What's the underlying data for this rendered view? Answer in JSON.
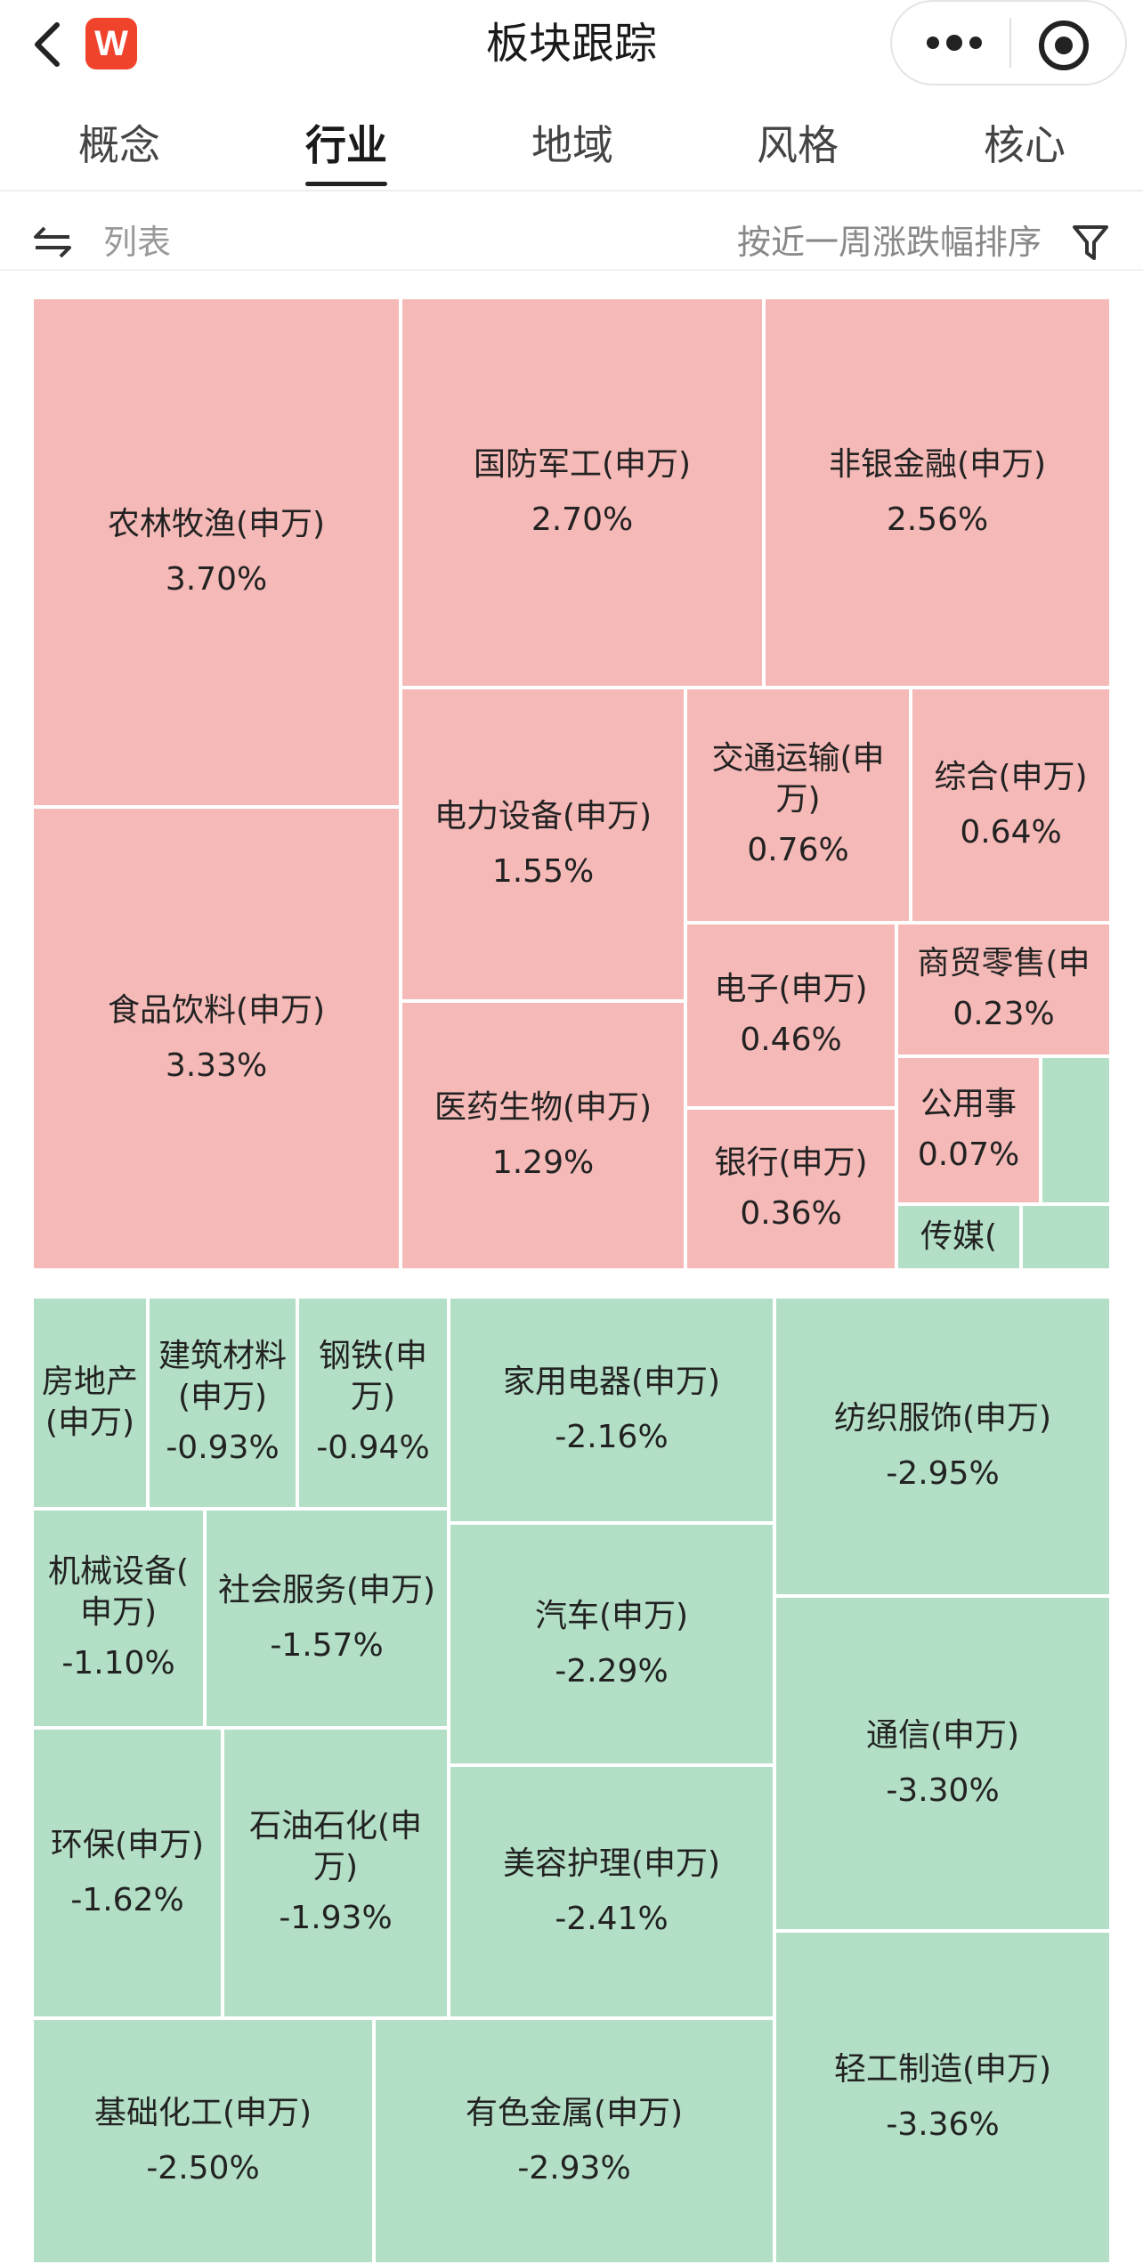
{
  "header": {
    "title": "板块跟踪",
    "logo_letter": "W",
    "brand_color": "#f0432b"
  },
  "tabs": [
    {
      "label": "概念",
      "active": false
    },
    {
      "label": "行业",
      "active": true
    },
    {
      "label": "地域",
      "active": false
    },
    {
      "label": "风格",
      "active": false
    },
    {
      "label": "核心",
      "active": false
    }
  ],
  "toolbar": {
    "view_label": "列表",
    "sort_label": "按近一周涨跌幅排序"
  },
  "colors": {
    "rise": "#f5b9b7",
    "fall": "#b3dfc6"
  },
  "sectors": [
    {
      "name": "农林牧渔(申万)",
      "change": "3.70%"
    },
    {
      "name": "国防军工(申万)",
      "change": "2.70%"
    },
    {
      "name": "非银金融(申万)",
      "change": "2.56%"
    },
    {
      "name": "食品饮料(申万)",
      "change": "3.33%"
    },
    {
      "name": "电力设备(申万)",
      "change": "1.55%"
    },
    {
      "name_line1": "交通运输(申",
      "name_line2": "万)",
      "change": "0.76%"
    },
    {
      "name": "综合(申万)",
      "change": "0.64%"
    },
    {
      "name": "医药生物(申万)",
      "change": "1.29%"
    },
    {
      "name": "电子(申万)",
      "change": "0.46%"
    },
    {
      "name": "商贸零售(申",
      "change": "0.23%"
    },
    {
      "name": "公用事",
      "change": "0.07%"
    },
    {
      "name": "银行(申万)",
      "change": "0.36%"
    },
    {
      "name": "传媒(",
      "change": ""
    },
    {
      "name_line1": "房地产",
      "name_line2": "(申万)",
      "change": ""
    },
    {
      "name_line1": "建筑材料",
      "name_line2": "(申万)",
      "change": "-0.93%"
    },
    {
      "name_line1": "钢铁(申",
      "name_line2": "万)",
      "change": "-0.94%"
    },
    {
      "name": "家用电器(申万)",
      "change": "-2.16%"
    },
    {
      "name": "纺织服饰(申万)",
      "change": "-2.95%"
    },
    {
      "name_line1": "机械设备(",
      "name_line2": "申万)",
      "change": "-1.10%"
    },
    {
      "name": "社会服务(申万)",
      "change": "-1.57%"
    },
    {
      "name": "汽车(申万)",
      "change": "-2.29%"
    },
    {
      "name": "通信(申万)",
      "change": "-3.30%"
    },
    {
      "name": "环保(申万)",
      "change": "-1.62%"
    },
    {
      "name_line1": "石油石化(申",
      "name_line2": "万)",
      "change": "-1.93%"
    },
    {
      "name": "美容护理(申万)",
      "change": "-2.41%"
    },
    {
      "name": "轻工制造(申万)",
      "change": "-3.36%"
    },
    {
      "name": "基础化工(申万)",
      "change": "-2.50%"
    },
    {
      "name": "有色金属(申万)",
      "change": "-2.93%"
    }
  ]
}
